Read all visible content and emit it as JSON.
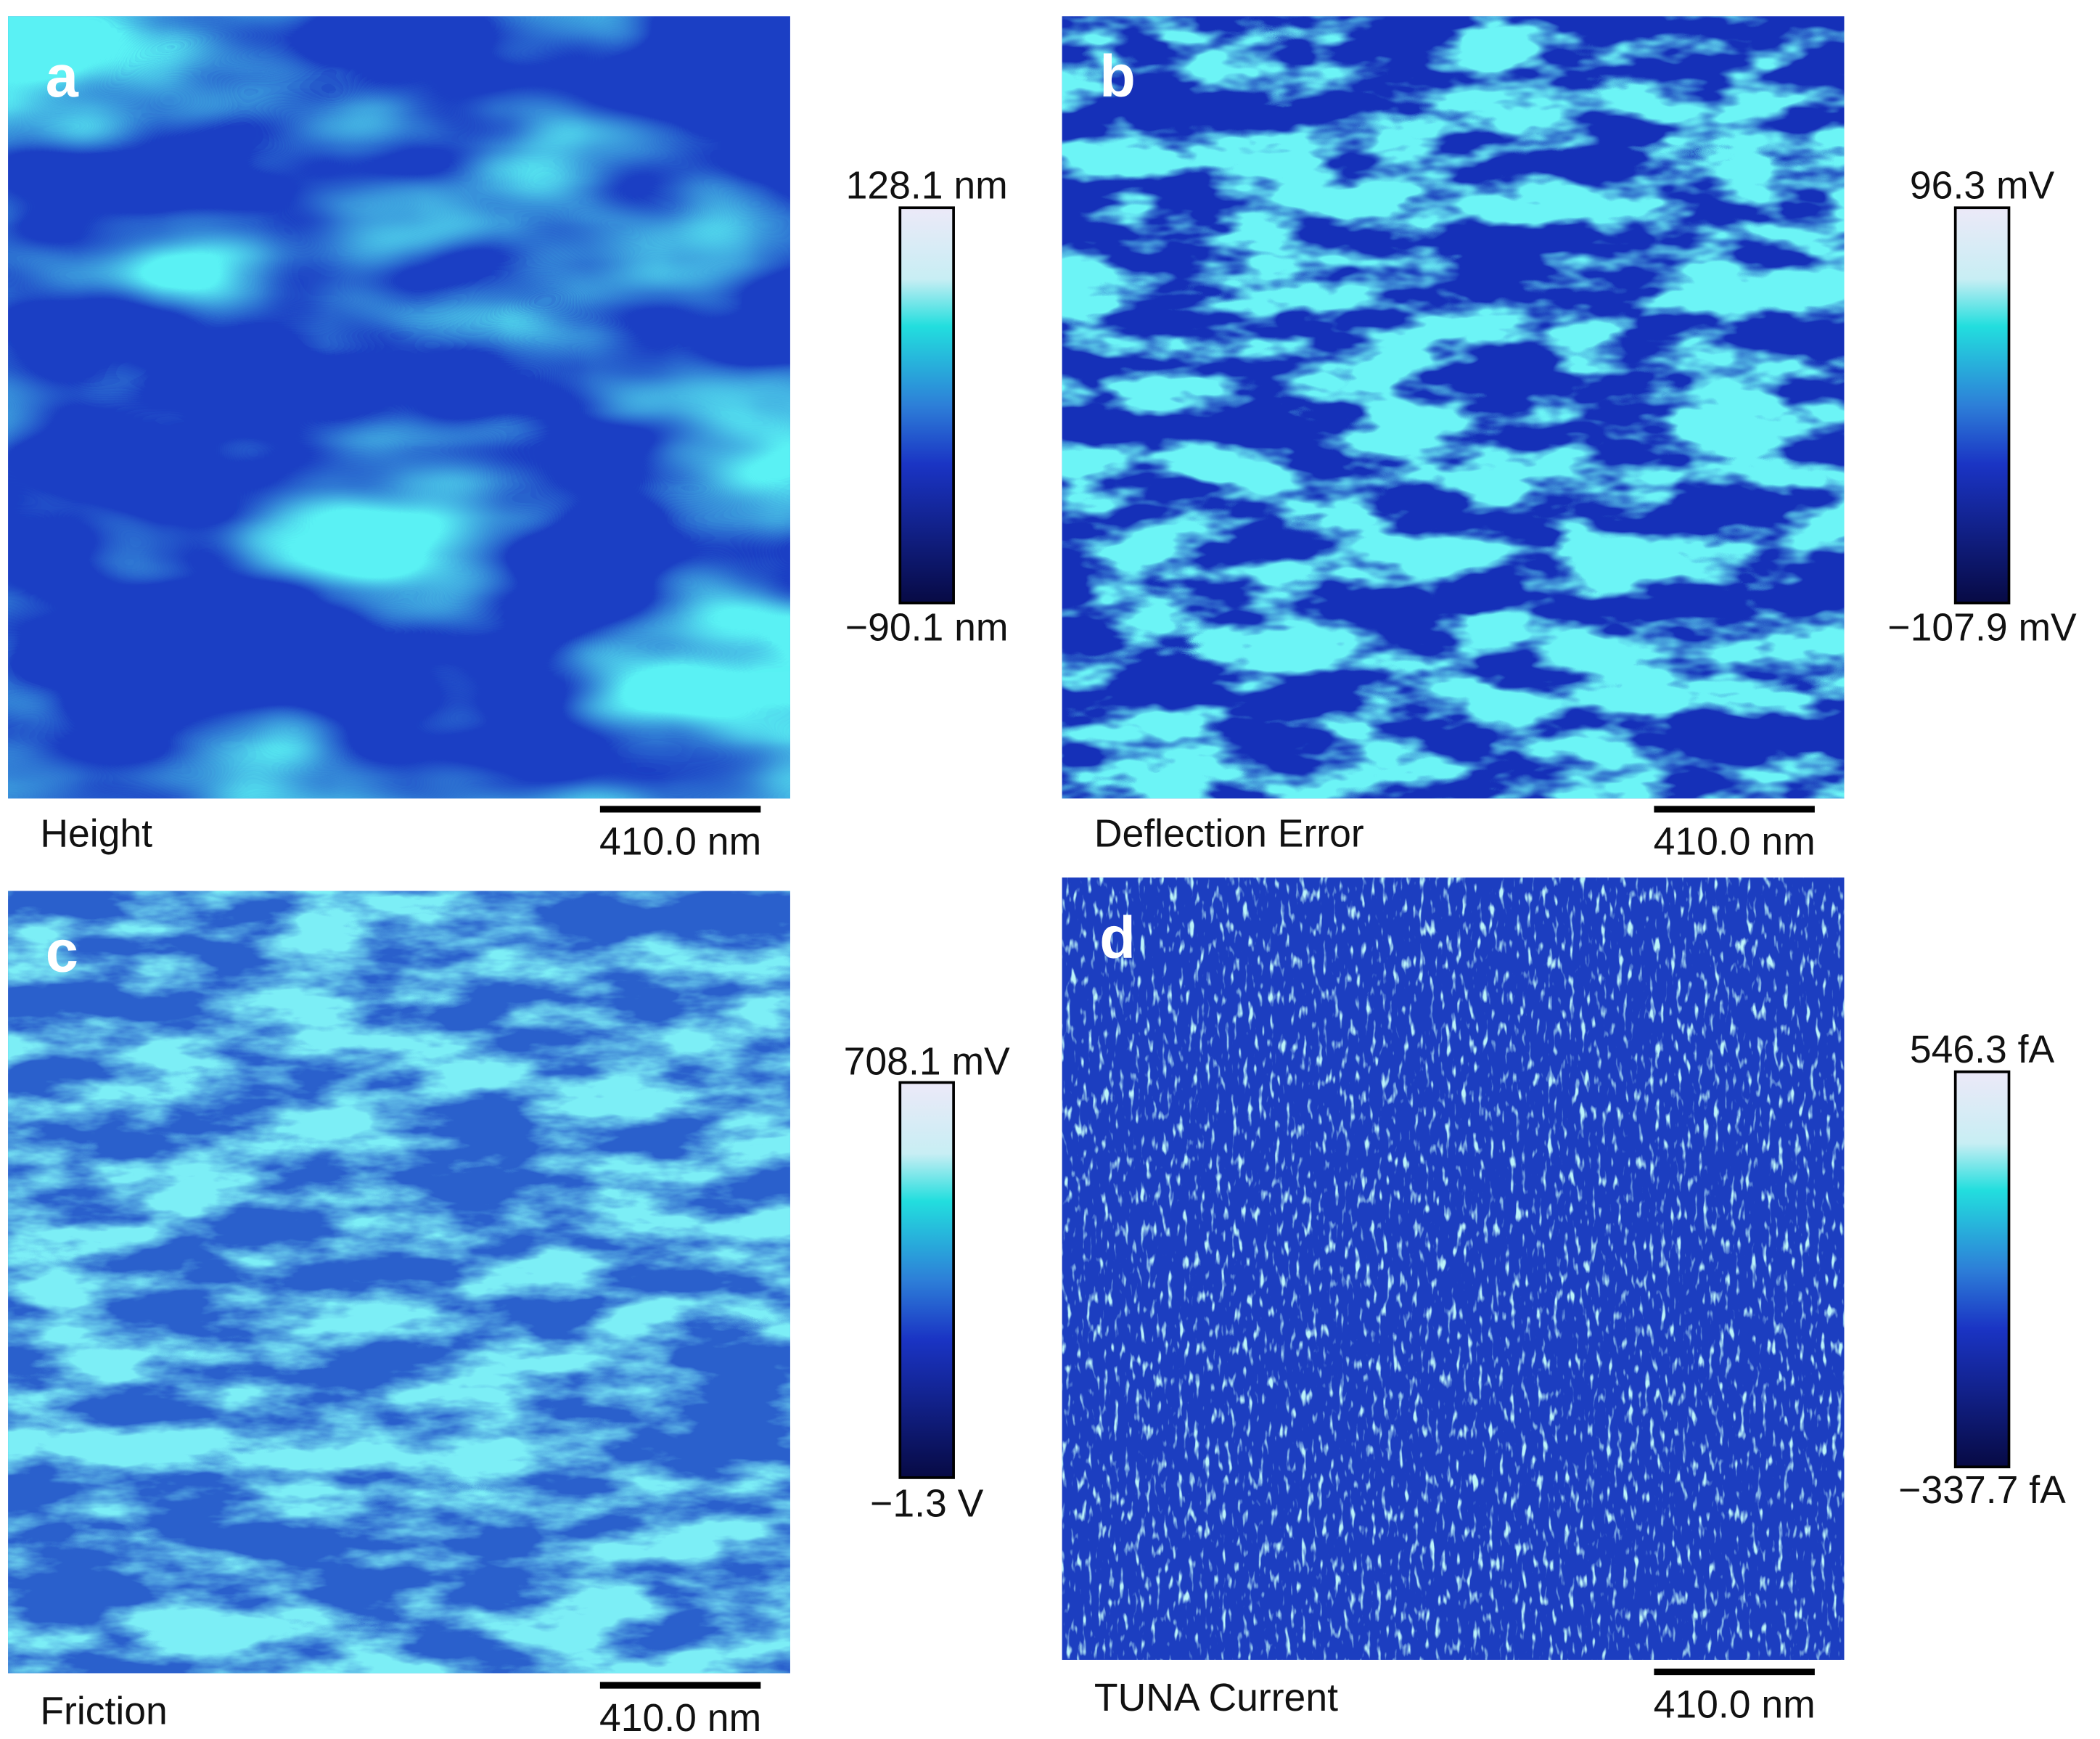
{
  "panels": [
    {
      "letter": "a",
      "channel": "Height",
      "scale_bar": "410.0 nm",
      "colorbar_max": "128.1 nm",
      "colorbar_min": "−90.1 nm"
    },
    {
      "letter": "b",
      "channel": "Deflection Error",
      "scale_bar": "410.0 nm",
      "colorbar_max": "96.3 mV",
      "colorbar_min": "−107.9 mV"
    },
    {
      "letter": "c",
      "channel": "Friction",
      "scale_bar": "410.0 nm",
      "colorbar_max": "708.1 mV",
      "colorbar_min": "−1.3 V"
    },
    {
      "letter": "d",
      "channel": "TUNA Current",
      "scale_bar": "410.0 nm",
      "colorbar_max": "546.3 fA",
      "colorbar_min": "−337.7 fA"
    }
  ]
}
